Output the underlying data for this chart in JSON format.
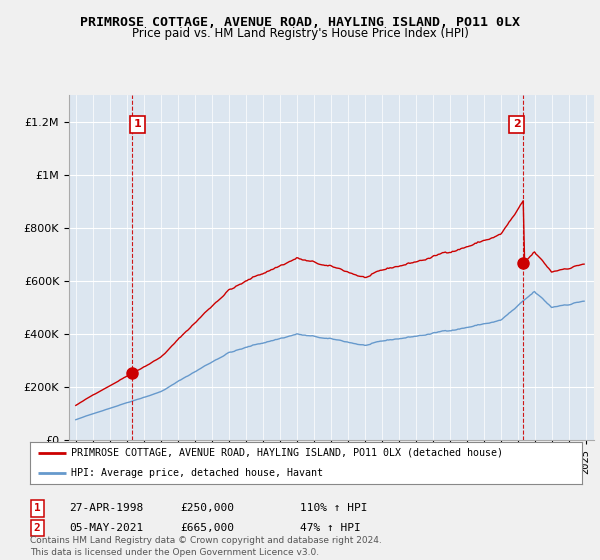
{
  "title": "PRIMROSE COTTAGE, AVENUE ROAD, HAYLING ISLAND, PO11 0LX",
  "subtitle": "Price paid vs. HM Land Registry's House Price Index (HPI)",
  "legend_label_red": "PRIMROSE COTTAGE, AVENUE ROAD, HAYLING ISLAND, PO11 0LX (detached house)",
  "legend_label_blue": "HPI: Average price, detached house, Havant",
  "sale1_date": "27-APR-1998",
  "sale1_price": "£250,000",
  "sale1_hpi": "110% ↑ HPI",
  "sale2_date": "05-MAY-2021",
  "sale2_price": "£665,000",
  "sale2_hpi": "47% ↑ HPI",
  "footer": "Contains HM Land Registry data © Crown copyright and database right 2024.\nThis data is licensed under the Open Government Licence v3.0.",
  "red_color": "#cc0000",
  "blue_color": "#6699cc",
  "background_color": "#f0f0f0",
  "plot_bg_color": "#dce6f0",
  "ylim": [
    0,
    1300000
  ],
  "yticks": [
    0,
    200000,
    400000,
    600000,
    800000,
    1000000,
    1200000
  ],
  "sale1_year": 1998.32,
  "sale1_value": 250000,
  "sale2_year": 2021.34,
  "sale2_value": 665000,
  "xstart": 1995.0,
  "xend": 2025.0
}
